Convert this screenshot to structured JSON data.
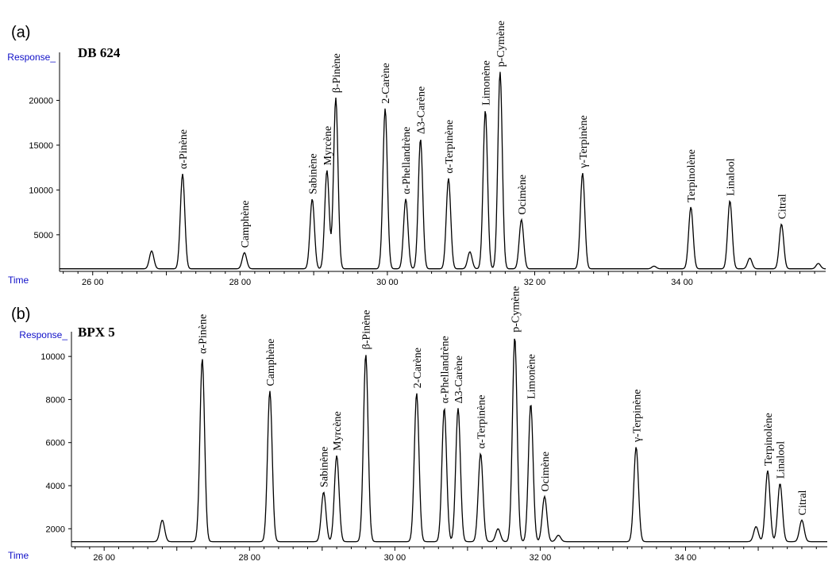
{
  "figure": {
    "panels": [
      {
        "letter": "(a)",
        "column": "DB 624"
      },
      {
        "letter": "(b)",
        "column": "BPX 5"
      }
    ]
  },
  "chart_data": [
    {
      "type": "line",
      "panel": "(a)",
      "title": "DB 624",
      "ylabel": "Response_",
      "xlabel": "Time",
      "xlim": [
        25.55,
        35.95
      ],
      "ylim": [
        1000,
        25000
      ],
      "baseline": 1200,
      "xticks": [
        26,
        28,
        30,
        32,
        34
      ],
      "xtick_labels": [
        "26 00",
        "28 00",
        "30 00",
        "32 00",
        "34 00"
      ],
      "yticks": [
        5000,
        10000,
        15000,
        20000
      ],
      "ytick_labels": [
        "5000",
        "10000",
        "15000",
        "20000"
      ],
      "grid": false,
      "peaks": [
        {
          "name": "",
          "rt": 26.8,
          "height": 3200
        },
        {
          "name": "α-Pinène",
          "rt": 27.22,
          "height": 11800
        },
        {
          "name": "Camphène",
          "rt": 28.06,
          "height": 3000
        },
        {
          "name": "Sabinène",
          "rt": 28.98,
          "height": 9000
        },
        {
          "name": "Myrcène",
          "rt": 29.18,
          "height": 12200
        },
        {
          "name": "β-Pinène",
          "rt": 29.3,
          "height": 20300
        },
        {
          "name": "2-Carène",
          "rt": 29.97,
          "height": 19100
        },
        {
          "name": "α-Phellandrène",
          "rt": 30.25,
          "height": 9000
        },
        {
          "name": "Δ3-Carène",
          "rt": 30.45,
          "height": 15700
        },
        {
          "name": "α-Terpinène",
          "rt": 30.83,
          "height": 11300
        },
        {
          "name": "",
          "rt": 31.12,
          "height": 3100
        },
        {
          "name": "Limonène",
          "rt": 31.33,
          "height": 18900
        },
        {
          "name": "p-Cymène",
          "rt": 31.53,
          "height": 23200
        },
        {
          "name": "Ocimène",
          "rt": 31.82,
          "height": 6700
        },
        {
          "name": "γ-Terpinène",
          "rt": 32.65,
          "height": 11900
        },
        {
          "name": "",
          "rt": 33.62,
          "height": 1500
        },
        {
          "name": "Terpinolène",
          "rt": 34.12,
          "height": 8100
        },
        {
          "name": "Linalool",
          "rt": 34.65,
          "height": 8800
        },
        {
          "name": "",
          "rt": 34.92,
          "height": 2400
        },
        {
          "name": "Citral",
          "rt": 35.35,
          "height": 6200
        },
        {
          "name": "",
          "rt": 35.85,
          "height": 1800
        }
      ]
    },
    {
      "type": "line",
      "panel": "(b)",
      "title": "BPX 5",
      "ylabel": "Response_",
      "xlabel": "Time",
      "xlim": [
        25.55,
        35.95
      ],
      "ylim": [
        1200,
        11000
      ],
      "baseline": 1400,
      "xticks": [
        26,
        28,
        30,
        32,
        34
      ],
      "xtick_labels": [
        "26 00",
        "28 00",
        "30 00",
        "32 00",
        "34 00"
      ],
      "yticks": [
        2000,
        4000,
        6000,
        8000,
        10000
      ],
      "ytick_labels": [
        "2000",
        "4000",
        "6000",
        "8000",
        "10000"
      ],
      "grid": false,
      "peaks": [
        {
          "name": "",
          "rt": 26.8,
          "height": 2400
        },
        {
          "name": "α-Pinène",
          "rt": 27.35,
          "height": 9900
        },
        {
          "name": "Camphène",
          "rt": 28.28,
          "height": 8400
        },
        {
          "name": "Sabinène",
          "rt": 29.02,
          "height": 3700
        },
        {
          "name": "Myrcène",
          "rt": 29.2,
          "height": 5400
        },
        {
          "name": "β-Pinène",
          "rt": 29.6,
          "height": 10100
        },
        {
          "name": "2-Carène",
          "rt": 30.3,
          "height": 8300
        },
        {
          "name": "α-Phellandrène",
          "rt": 30.68,
          "height": 7600
        },
        {
          "name": "Δ3-Carène",
          "rt": 30.87,
          "height": 7600
        },
        {
          "name": "α-Terpinène",
          "rt": 31.18,
          "height": 5500
        },
        {
          "name": "",
          "rt": 31.42,
          "height": 2000
        },
        {
          "name": "p-Cymène",
          "rt": 31.65,
          "height": 10900
        },
        {
          "name": "Limonène",
          "rt": 31.87,
          "height": 7800
        },
        {
          "name": "Ocimène",
          "rt": 32.06,
          "height": 3500
        },
        {
          "name": "",
          "rt": 32.25,
          "height": 1700
        },
        {
          "name": "γ-Terpinène",
          "rt": 33.32,
          "height": 5800
        },
        {
          "name": "",
          "rt": 34.97,
          "height": 2100
        },
        {
          "name": "Terpinolène",
          "rt": 35.13,
          "height": 4700
        },
        {
          "name": "Linalool",
          "rt": 35.3,
          "height": 4100
        },
        {
          "name": "Citral",
          "rt": 35.6,
          "height": 2400
        }
      ]
    }
  ]
}
